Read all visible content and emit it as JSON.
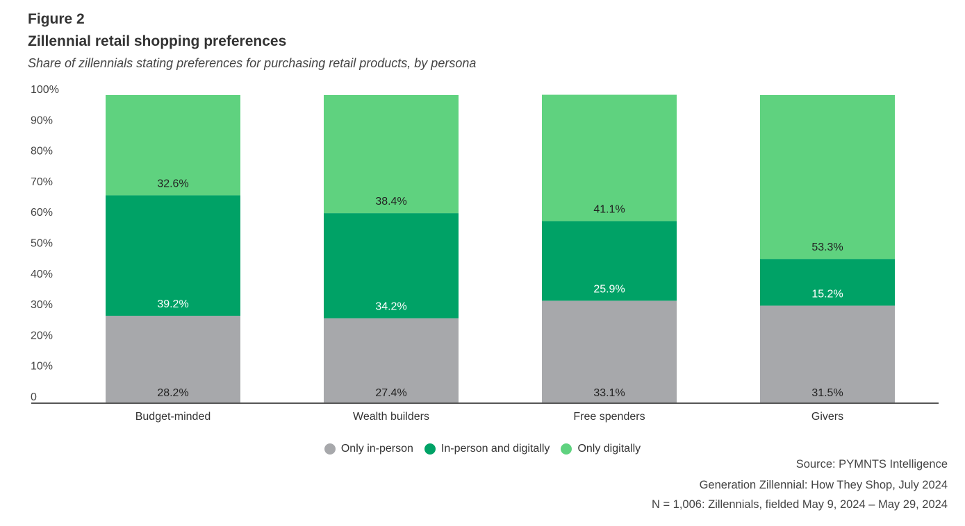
{
  "figure_label": "Figure 2",
  "title": "Zillennial retail shopping preferences",
  "subtitle": "Share of zillennials stating preferences for purchasing retail products, by persona",
  "source_lines": [
    "Source: PYMNTS Intelligence",
    "Generation Zillennial:  How They Shop, July 2024",
    "N = 1,006: Zillennials, fielded May 9, 2024 – May 29, 2024"
  ],
  "chart_data": {
    "type": "bar",
    "stacked": true,
    "title": "Zillennial retail shopping preferences",
    "subtitle": "Share of zillennials stating preferences for purchasing retail products, by persona",
    "xlabel": "",
    "ylabel": "",
    "ylim": [
      0,
      100
    ],
    "yticks": [
      0,
      10,
      20,
      30,
      40,
      50,
      60,
      70,
      80,
      90,
      100
    ],
    "ytick_labels": [
      "0",
      "10%",
      "20%",
      "30%",
      "40%",
      "50%",
      "60%",
      "70%",
      "80%",
      "90%",
      "100%"
    ],
    "grid": false,
    "legend_position": "bottom",
    "categories": [
      "Budget-minded",
      "Wealth builders",
      "Free spenders",
      "Givers"
    ],
    "series": [
      {
        "name": "Only in-person",
        "color": "#a7a8ab",
        "label_color": "#222222",
        "values": [
          28.2,
          27.4,
          33.1,
          31.5
        ],
        "labels": [
          "28.2%",
          "27.4%",
          "33.1%",
          "31.5%"
        ]
      },
      {
        "name": "In-person and digitally",
        "color": "#00a266",
        "label_color": "#ffffff",
        "values": [
          39.2,
          34.2,
          25.9,
          15.2
        ],
        "labels": [
          "39.2%",
          "34.2%",
          "25.9%",
          "15.2%"
        ]
      },
      {
        "name": "Only digitally",
        "color": "#5fd27f",
        "label_color": "#222222",
        "values": [
          32.6,
          38.4,
          41.1,
          53.3
        ],
        "labels": [
          "32.6%",
          "38.4%",
          "41.1%",
          "53.3%"
        ]
      }
    ]
  },
  "colors": {
    "axis": "#555555",
    "text": "#333333"
  }
}
